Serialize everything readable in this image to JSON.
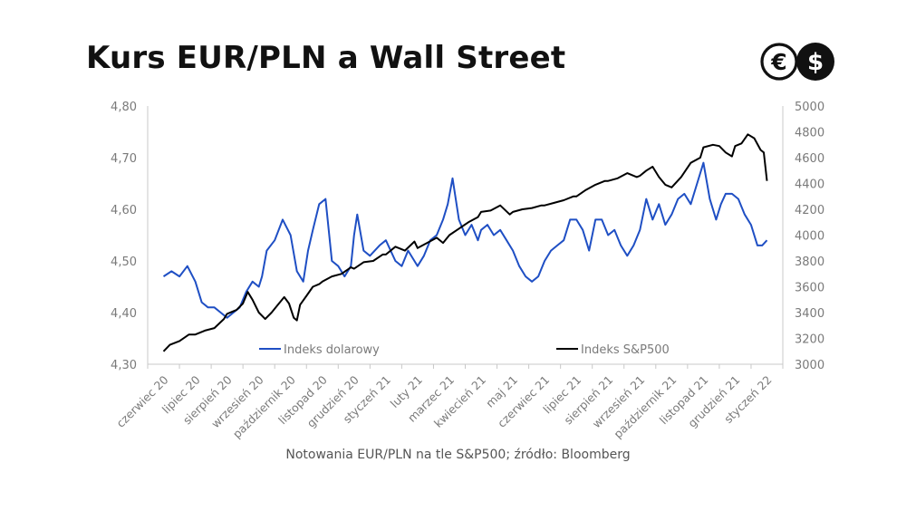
{
  "page": {
    "title": "Kurs EUR/PLN a Wall Street",
    "caption": "Notowania EUR/PLN na tle S&P500; źródło: Bloomberg",
    "logo": {
      "icons": [
        "euro-icon",
        "dollar-icon"
      ],
      "color": "#111111",
      "symbols": [
        "€",
        "$"
      ]
    }
  },
  "chart_data": {
    "type": "line",
    "title": "Kurs EUR/PLN a Wall Street",
    "categories": [
      "czerwiec 20",
      "lipiec 20",
      "sierpień 20",
      "wrzesień 20",
      "październik 20",
      "listopad 20",
      "grudzień 20",
      "styczeń 21",
      "luty 21",
      "marzec 21",
      "kwiecień 21",
      "maj 21",
      "czerwiec 21",
      "lipiec 21",
      "sierpień 21",
      "wrzesień 21",
      "październik 21",
      "listopad 21",
      "grudzień 21",
      "styczeń 22"
    ],
    "y_left": {
      "min": 4.3,
      "max": 4.8,
      "ticks": [
        "4,30",
        "4,40",
        "4,50",
        "4,60",
        "4,70",
        "4,80"
      ]
    },
    "y_right": {
      "min": 3000,
      "max": 5000,
      "ticks": [
        "3000",
        "3200",
        "3400",
        "3600",
        "3800",
        "4000",
        "4200",
        "4400",
        "4600",
        "4800",
        "5000"
      ]
    },
    "legend_placement": "bottom",
    "grid": false,
    "series": [
      {
        "name": "Indeks dolarowy",
        "axis": "left",
        "color": "#1f4fc4",
        "x": [
          0,
          0.25,
          0.5,
          0.75,
          1.0,
          1.2,
          1.4,
          1.6,
          1.8,
          2.0,
          2.2,
          2.4,
          2.6,
          2.8,
          3.0,
          3.1,
          3.25,
          3.5,
          3.75,
          4.0,
          4.2,
          4.4,
          4.55,
          4.7,
          4.9,
          5.1,
          5.3,
          5.5,
          5.7,
          5.9,
          6.0,
          6.1,
          6.3,
          6.5,
          6.8,
          7.0,
          7.3,
          7.5,
          7.7,
          7.9,
          8.0,
          8.2,
          8.4,
          8.6,
          8.8,
          8.95,
          9.1,
          9.3,
          9.5,
          9.7,
          9.9,
          10.0,
          10.2,
          10.4,
          10.6,
          10.8,
          11.0,
          11.2,
          11.4,
          11.6,
          11.8,
          12.0,
          12.2,
          12.4,
          12.6,
          12.8,
          13.0,
          13.2,
          13.4,
          13.6,
          13.8,
          14.0,
          14.2,
          14.4,
          14.6,
          14.8,
          15.0,
          15.2,
          15.4,
          15.6,
          15.8,
          16.0,
          16.2,
          16.4,
          16.6,
          16.8,
          17.0,
          17.2,
          17.4,
          17.55,
          17.7,
          17.9,
          18.1,
          18.3,
          18.5,
          18.7,
          18.85,
          19.0
        ],
        "values": [
          4.47,
          4.48,
          4.47,
          4.49,
          4.46,
          4.42,
          4.41,
          4.41,
          4.4,
          4.39,
          4.4,
          4.41,
          4.44,
          4.46,
          4.45,
          4.47,
          4.52,
          4.54,
          4.58,
          4.55,
          4.48,
          4.46,
          4.52,
          4.56,
          4.61,
          4.62,
          4.5,
          4.49,
          4.47,
          4.49,
          4.55,
          4.59,
          4.52,
          4.51,
          4.53,
          4.54,
          4.5,
          4.49,
          4.52,
          4.5,
          4.49,
          4.51,
          4.54,
          4.55,
          4.58,
          4.61,
          4.66,
          4.58,
          4.55,
          4.57,
          4.54,
          4.56,
          4.57,
          4.55,
          4.56,
          4.54,
          4.52,
          4.49,
          4.47,
          4.46,
          4.47,
          4.5,
          4.52,
          4.53,
          4.54,
          4.58,
          4.58,
          4.56,
          4.52,
          4.58,
          4.58,
          4.55,
          4.56,
          4.53,
          4.51,
          4.53,
          4.56,
          4.62,
          4.58,
          4.61,
          4.57,
          4.59,
          4.62,
          4.63,
          4.61,
          4.65,
          4.69,
          4.62,
          4.58,
          4.61,
          4.63,
          4.63,
          4.62,
          4.59,
          4.57,
          4.53,
          4.53,
          4.54
        ]
      },
      {
        "name": "Indeks S&P500",
        "axis": "right",
        "color": "#000000",
        "x": [
          0,
          0.2,
          0.5,
          0.8,
          1.0,
          1.3,
          1.6,
          1.9,
          2.0,
          2.3,
          2.5,
          2.65,
          2.8,
          3.0,
          3.2,
          3.4,
          3.6,
          3.8,
          3.95,
          4.1,
          4.2,
          4.3,
          4.5,
          4.7,
          4.9,
          5.0,
          5.3,
          5.6,
          5.9,
          6.0,
          6.3,
          6.6,
          6.9,
          7.0,
          7.3,
          7.6,
          7.9,
          8.0,
          8.3,
          8.6,
          8.8,
          9.0,
          9.3,
          9.6,
          9.9,
          10.0,
          10.3,
          10.6,
          10.9,
          11.0,
          11.3,
          11.6,
          11.9,
          12.0,
          12.3,
          12.6,
          12.9,
          13.0,
          13.3,
          13.6,
          13.9,
          14.0,
          14.3,
          14.6,
          14.9,
          15.0,
          15.2,
          15.4,
          15.6,
          15.8,
          16.0,
          16.3,
          16.6,
          16.9,
          17.0,
          17.3,
          17.5,
          17.7,
          17.9,
          18.0,
          18.2,
          18.4,
          18.6,
          18.8,
          18.9,
          19.0
        ],
        "values": [
          3100,
          3150,
          3180,
          3230,
          3230,
          3260,
          3280,
          3350,
          3390,
          3420,
          3470,
          3560,
          3500,
          3400,
          3350,
          3400,
          3460,
          3520,
          3470,
          3360,
          3340,
          3460,
          3530,
          3600,
          3620,
          3640,
          3680,
          3700,
          3750,
          3740,
          3790,
          3800,
          3850,
          3850,
          3910,
          3880,
          3950,
          3900,
          3940,
          3980,
          3940,
          4000,
          4050,
          4100,
          4140,
          4180,
          4190,
          4230,
          4160,
          4180,
          4200,
          4210,
          4230,
          4230,
          4250,
          4270,
          4300,
          4300,
          4350,
          4390,
          4420,
          4420,
          4440,
          4480,
          4450,
          4460,
          4500,
          4530,
          4450,
          4390,
          4370,
          4450,
          4560,
          4600,
          4680,
          4700,
          4690,
          4640,
          4610,
          4690,
          4710,
          4780,
          4750,
          4660,
          4640,
          4420
        ]
      }
    ]
  }
}
